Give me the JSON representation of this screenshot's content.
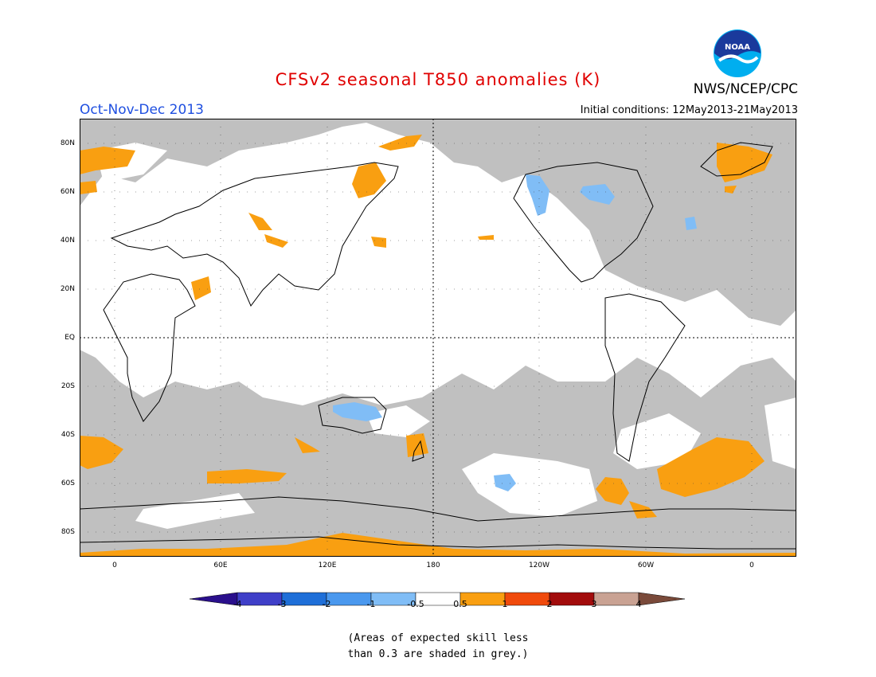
{
  "title": "CFSv2 seasonal T850 anomalies (K)",
  "organization": "NWS/NCEP/CPC",
  "logo_text": "NOAA",
  "season": "Oct-Nov-Dec 2013",
  "initial_conditions": "Initial conditions: 12May2013-21May2013",
  "lat_labels": [
    "80N",
    "60N",
    "40N",
    "20N",
    "EQ",
    "20S",
    "40S",
    "60S",
    "80S"
  ],
  "lon_labels": [
    "0",
    "60E",
    "120E",
    "180",
    "120W",
    "60W",
    "0"
  ],
  "colorbar": {
    "labels": [
      "-4",
      "-3",
      "-2",
      "-1",
      "-0.5",
      "0.5",
      "1",
      "2",
      "3",
      "4"
    ],
    "colors": [
      "#2a0f8c",
      "#3f3fc8",
      "#1f6fd8",
      "#4a98ee",
      "#80bdf6",
      "#ffffff",
      "#f99f11",
      "#f04a0c",
      "#a20c0c",
      "#c9a293",
      "#7a4a3a"
    ]
  },
  "note_line1": "(Areas of expected skill less",
  "note_line2": "than 0.3 are shaded in grey.)",
  "colors": {
    "grey_skill": "#c0c0c0",
    "no_anomaly": "#ffffff",
    "warm": "#f99f11",
    "cool": "#80bdf6"
  }
}
